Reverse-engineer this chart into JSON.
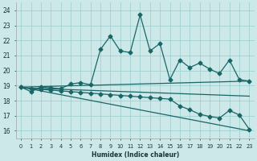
{
  "xlabel": "Humidex (Indice chaleur)",
  "xlim": [
    -0.5,
    23.5
  ],
  "ylim": [
    15.5,
    24.5
  ],
  "xticks": [
    0,
    1,
    2,
    3,
    4,
    5,
    6,
    7,
    8,
    9,
    10,
    11,
    12,
    13,
    14,
    15,
    16,
    17,
    18,
    19,
    20,
    21,
    22,
    23
  ],
  "yticks": [
    16,
    17,
    18,
    19,
    20,
    21,
    22,
    23,
    24
  ],
  "bg_color": "#cce8e8",
  "grid_color": "#99cccc",
  "line_color": "#1a6666",
  "main_data": [
    18.9,
    18.6,
    18.9,
    18.85,
    18.8,
    19.1,
    19.2,
    19.05,
    21.4,
    22.3,
    21.3,
    21.2,
    23.7,
    21.3,
    21.8,
    19.4,
    20.7,
    20.2,
    20.5,
    20.1,
    19.8,
    20.7,
    19.4,
    19.3
  ],
  "trend_flat_y0": 18.9,
  "trend_flat_y1": 19.3,
  "trend_slight_y0": 18.85,
  "trend_slight_y1": 18.3,
  "trend_steep_y0": 18.9,
  "trend_steep_y1": 16.0,
  "lower_data": [
    18.9,
    18.8,
    18.75,
    18.7,
    18.65,
    18.6,
    18.55,
    18.5,
    18.45,
    18.4,
    18.35,
    18.3,
    18.25,
    18.2,
    18.15,
    18.1,
    17.65,
    17.4,
    17.1,
    16.95,
    16.85,
    17.35,
    17.05,
    16.1
  ],
  "marker_size": 2.5,
  "linewidth": 0.9
}
